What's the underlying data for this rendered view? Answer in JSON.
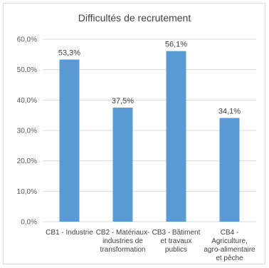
{
  "chart_data": {
    "type": "bar",
    "title": "Difficultés de recrutement",
    "categories": [
      [
        "CB1 - Industrie"
      ],
      [
        "CB2 - Matériaux-",
        "industries de",
        "transformation"
      ],
      [
        "CB3 - Bâtiment",
        "et travaux",
        "publics"
      ],
      [
        "CB4 -",
        "Agriculture,",
        "agro-alimentaire",
        "et pêche"
      ]
    ],
    "values": [
      53.3,
      37.5,
      56.1,
      34.1
    ],
    "value_labels": [
      "53,3%",
      "37,5%",
      "56,1%",
      "34,1%"
    ],
    "ylim": [
      0,
      60
    ],
    "yticks": [
      0,
      10,
      20,
      30,
      40,
      50,
      60
    ],
    "ytick_labels": [
      "0,0%",
      "10,0%",
      "20,0%",
      "30,0%",
      "40,0%",
      "50,0%",
      "60,0%"
    ],
    "grid": true,
    "bar_color": "#5b9bd5"
  }
}
